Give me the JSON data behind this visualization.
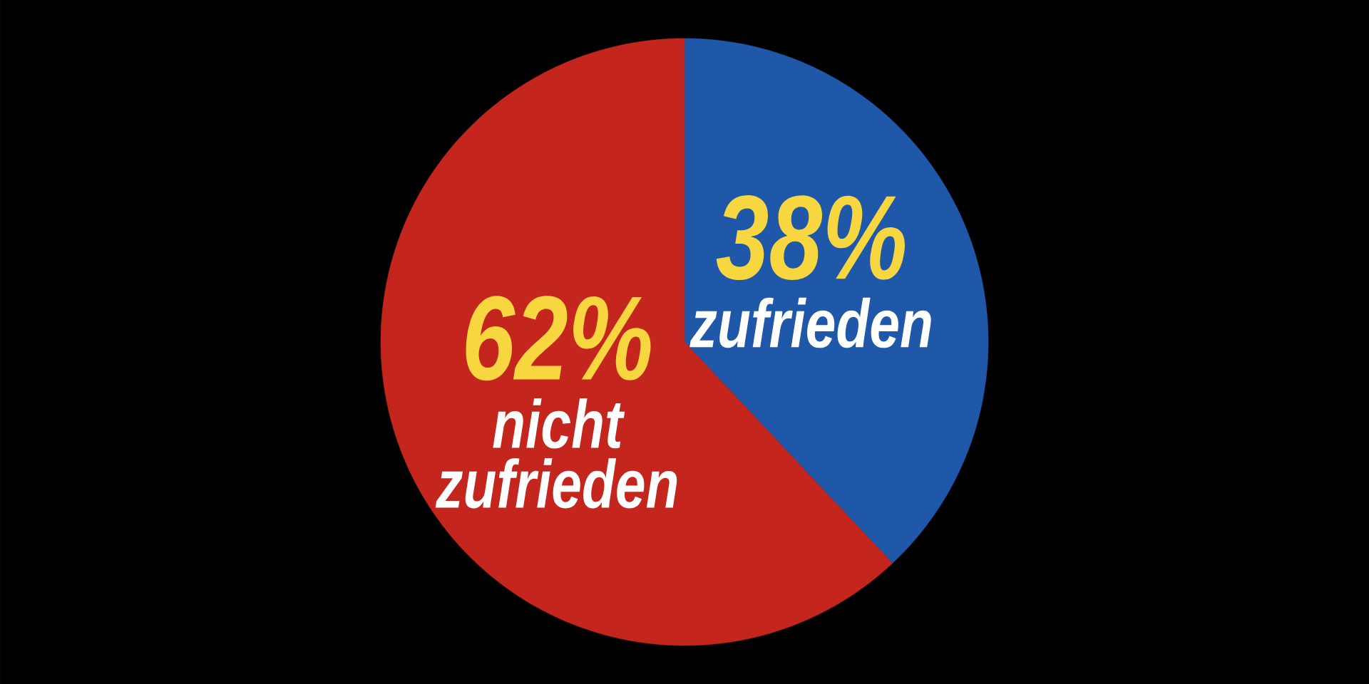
{
  "chart_data": {
    "type": "pie",
    "categories": [
      "zufrieden",
      "nicht zufrieden"
    ],
    "values": [
      38,
      62
    ],
    "colors": [
      "#1f58a8",
      "#c4261d"
    ],
    "value_labels": [
      "38%",
      "62%"
    ]
  }
}
